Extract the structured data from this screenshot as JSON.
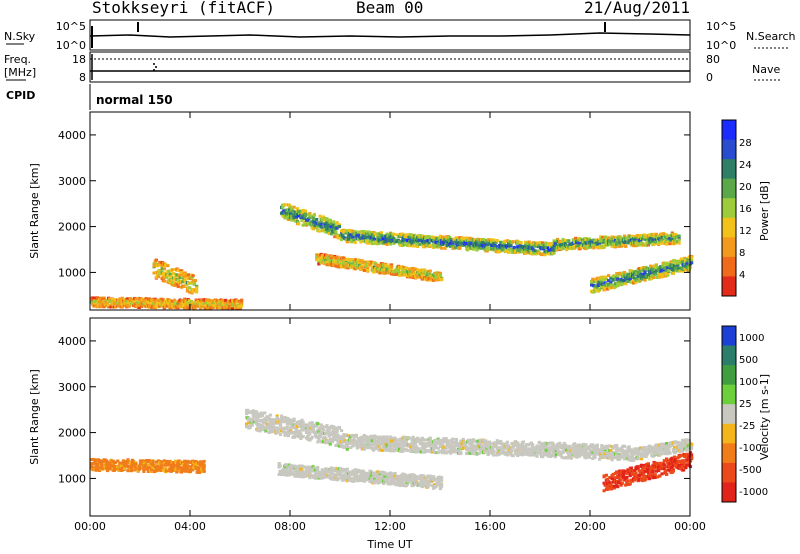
{
  "header": {
    "station": "Stokkseyri (fitACF)",
    "beam": "Beam 00",
    "date": "21/Aug/2011"
  },
  "noise_panel": {
    "left_label": "N.Sky",
    "right_label": "N.Search",
    "left_ticks": [
      "10^5",
      "10^0"
    ],
    "right_ticks": [
      "10^5",
      "10^0"
    ]
  },
  "freq_panel": {
    "left_label_1": "Freq.",
    "left_label_2": "[MHz]",
    "right_label": "Nave",
    "left_ticks": [
      "18",
      "8"
    ],
    "right_ticks": [
      "80",
      "0"
    ],
    "cpid_label": "CPID",
    "cpid_text": "normal 150"
  },
  "chart_data": [
    {
      "type": "heatmap",
      "quantity": "Power",
      "xlabel": "Time UT",
      "ylabel": "Slant Range [km]",
      "xlim": [
        0,
        24
      ],
      "ylim": [
        180,
        4500
      ],
      "x_tick_labels": [
        "00:00",
        "04:00",
        "08:00",
        "12:00",
        "16:00",
        "20:00",
        "00:00"
      ],
      "y_ticks": [
        1000,
        2000,
        3000,
        4000
      ],
      "colorbar_label": "Power [dB]",
      "colorbar_ticks": [
        "4",
        "8",
        "12",
        "16",
        "20",
        "24",
        "28"
      ],
      "colorbar_colors": [
        "#1a2cff",
        "#2a4ccf",
        "#2f7f66",
        "#5aa84a",
        "#9ccc3a",
        "#f2c21a",
        "#f39a1c",
        "#ef6a1a",
        "#e32b1a"
      ],
      "bands": [
        {
          "start": 7.6,
          "end": 10.0,
          "r_start": 2350,
          "r_end": 1900,
          "width": 350,
          "level": 0.8
        },
        {
          "start": 10.0,
          "end": 18.5,
          "r_start": 1800,
          "r_end": 1500,
          "width": 260,
          "level": 0.85
        },
        {
          "start": 18.5,
          "end": 23.5,
          "r_start": 1600,
          "r_end": 1750,
          "width": 240,
          "level": 0.75
        },
        {
          "start": 9.0,
          "end": 14.0,
          "r_start": 1300,
          "r_end": 900,
          "width": 220,
          "level": 0.55
        },
        {
          "start": 20.0,
          "end": 24.0,
          "r_start": 700,
          "r_end": 1200,
          "width": 300,
          "level": 0.8
        },
        {
          "start": 2.5,
          "end": 4.2,
          "r_start": 1100,
          "r_end": 700,
          "width": 400,
          "level": 0.55
        },
        {
          "start": 0.0,
          "end": 6.0,
          "r_start": 350,
          "r_end": 300,
          "width": 200,
          "level": 0.45
        }
      ]
    },
    {
      "type": "heatmap",
      "quantity": "Velocity",
      "xlabel": "Time UT",
      "ylabel": "Slant Range [km]",
      "xlim": [
        0,
        24
      ],
      "ylim": [
        180,
        4500
      ],
      "x_tick_labels": [
        "00:00",
        "04:00",
        "08:00",
        "12:00",
        "16:00",
        "20:00",
        "00:00"
      ],
      "y_ticks": [
        1000,
        2000,
        3000,
        4000
      ],
      "colorbar_label": "Velocity [m s-1]",
      "colorbar_ticks": [
        "1000",
        "500",
        "100",
        "25",
        "-25",
        "-100",
        "-500",
        "-1000"
      ],
      "colorbar_colors": [
        "#1c3fd6",
        "#2b7f6a",
        "#3f9e3f",
        "#6ccf3c",
        "#c8c8c0",
        "#f4b51c",
        "#f07d1a",
        "#ec4a1a",
        "#e2231a"
      ],
      "bands": [
        {
          "start": 6.2,
          "end": 10.0,
          "r_start": 2300,
          "r_end": 1900,
          "width": 420,
          "level": 0.5
        },
        {
          "start": 10.0,
          "end": 21.5,
          "r_start": 1800,
          "r_end": 1550,
          "width": 320,
          "level": 0.5
        },
        {
          "start": 21.5,
          "end": 24.0,
          "r_start": 1500,
          "r_end": 1750,
          "width": 250,
          "level": 0.5
        },
        {
          "start": 7.5,
          "end": 14.0,
          "r_start": 1200,
          "r_end": 900,
          "width": 260,
          "level": 0.5
        },
        {
          "start": 20.5,
          "end": 24.0,
          "r_start": 900,
          "r_end": 1400,
          "width": 350,
          "level": 0.12
        },
        {
          "start": 0.0,
          "end": 4.5,
          "r_start": 1300,
          "r_end": 1250,
          "width": 250,
          "level": 0.3
        }
      ]
    }
  ]
}
